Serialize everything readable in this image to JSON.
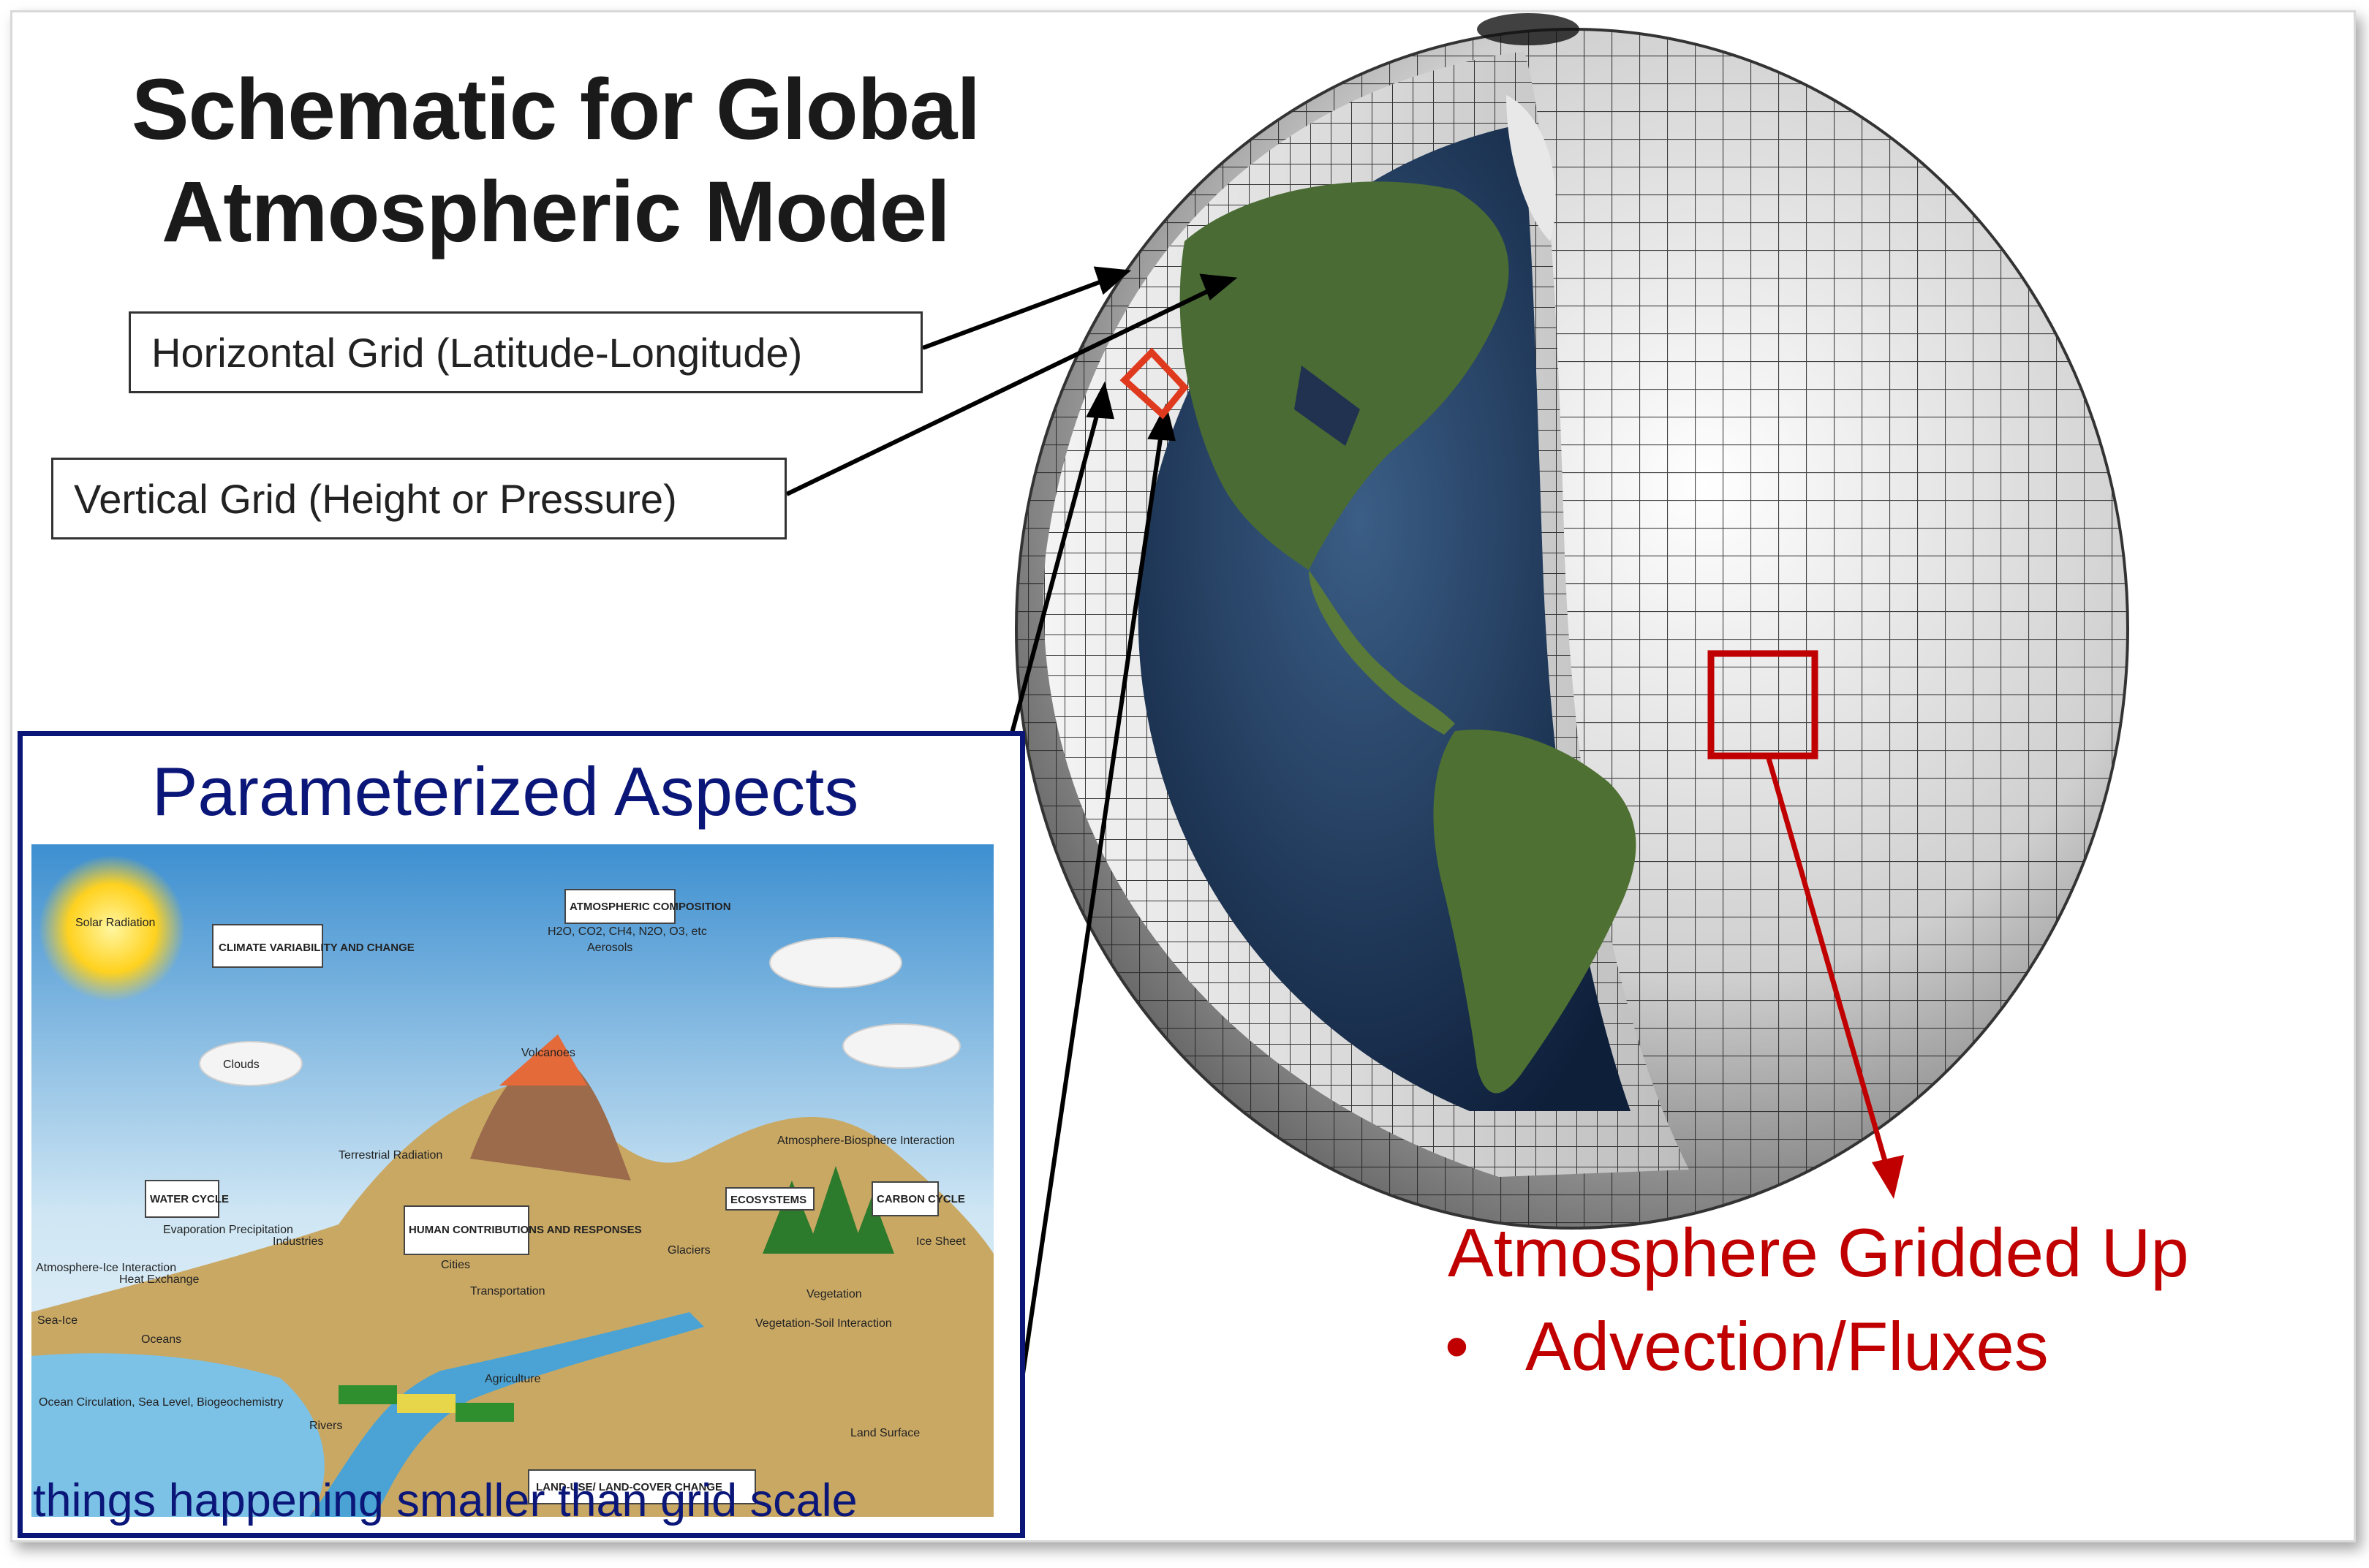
{
  "title_line1": "Schematic for Global",
  "title_line2": "Atmospheric Model",
  "labels": {
    "horizontal_grid": "Horizontal Grid (Latitude-Longitude)",
    "vertical_grid": "Vertical Grid (Height or Pressure)"
  },
  "parameterized": {
    "title": "Parameterized Aspects",
    "caption": "things happening smaller than grid scale",
    "diagram_labels": {
      "solar": "Solar Radiation",
      "climate": "CLIMATE VARIABILITY AND CHANGE",
      "composition": "ATMOSPHERIC COMPOSITION",
      "gases": "H2O, CO2, CH4, N2O, O3, etc",
      "aerosols": "Aerosols",
      "clouds": "Clouds",
      "volcanoes": "Volcanoes",
      "terrestrial": "Terrestrial Radiation",
      "water_cycle": "WATER CYCLE",
      "human": "HUMAN CONTRIBUTIONS AND RESPONSES",
      "ecosystems": "ECOSYSTEMS",
      "atm_bio": "Atmosphere-Biosphere Interaction",
      "carbon_cycle": "CARBON CYCLE",
      "ice_sheet": "Ice Sheet",
      "glaciers": "Glaciers",
      "evaporation": "Evaporation Precipitation",
      "industries": "Industries",
      "cities": "Cities",
      "transportation": "Transportation",
      "vegetation": "Vegetation",
      "atm_ice": "Atmosphere-Ice Interaction",
      "heat": "Heat Exchange",
      "sea_ice": "Sea-Ice",
      "oceans": "Oceans",
      "agriculture": "Agriculture",
      "veg_soil": "Vegetation-Soil Interaction",
      "ocean_circ": "Ocean Circulation, Sea Level, Biogeochemistry",
      "rivers": "Rivers",
      "land_surface": "Land Surface",
      "land_use": "LAND-USE/ LAND-COVER CHANGE"
    }
  },
  "gridded": {
    "title": "Atmosphere Gridded Up",
    "bullet_symbol": "•",
    "bullet": "Advection/Fluxes"
  },
  "colors": {
    "navy": "#0b1679",
    "red": "#c00000",
    "title_text": "#1a1a1a"
  }
}
